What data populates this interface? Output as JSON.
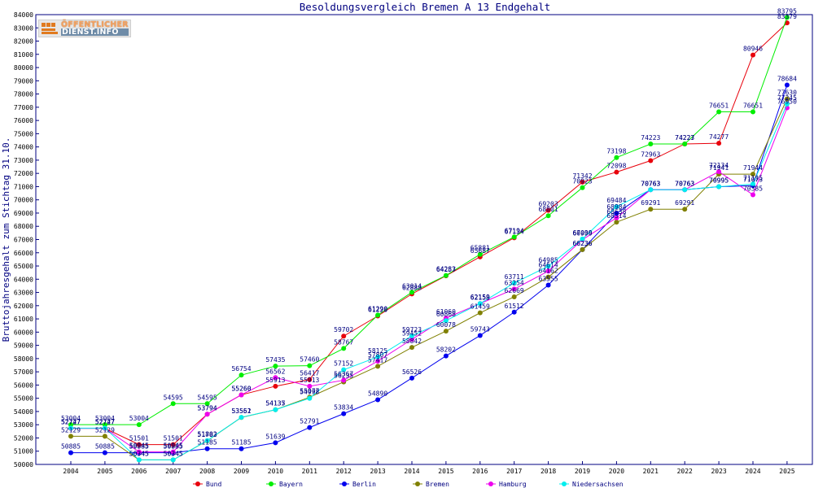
{
  "logo": {
    "line1": "ÖFFENTLICHER",
    "line2": "DIENST.INFO"
  },
  "chart_data": {
    "type": "line",
    "title": "Besoldungsvergleich Bremen A 13 Endgehalt",
    "xlabel": "",
    "ylabel": "Bruttojahresgehalt zum Stichtag 31.10.",
    "ylim": [
      50000,
      84000
    ],
    "ytick_step": 1000,
    "grid": false,
    "legend_position": "bottom",
    "categories": [
      "2004",
      "2005",
      "2006",
      "2007",
      "2008",
      "2009",
      "2010",
      "2011",
      "2012",
      "2013",
      "2014",
      "2015",
      "2016",
      "2017",
      "2018",
      "2019",
      "2020",
      "2021",
      "2022",
      "2023",
      "2024",
      "2025"
    ],
    "series": [
      {
        "name": "Bund",
        "color": "#e8000b",
        "values": [
          52727,
          52727,
          51501,
          51501,
          53794,
          55260,
          55913,
          56417,
          59702,
          61220,
          62888,
          64257,
          65687,
          67134,
          69203,
          71342,
          72098,
          72963,
          74227,
          74277,
          80946,
          83379
        ]
      },
      {
        "name": "Bayern",
        "color": "#00ee00",
        "values": [
          53004,
          53004,
          53004,
          54595,
          54595,
          56754,
          57435,
          57460,
          58767,
          61290,
          63014,
          64283,
          65881,
          67194,
          68801,
          70923,
          73198,
          74223,
          74223,
          76651,
          76651,
          83795
        ]
      },
      {
        "name": "Berlin",
        "color": "#0000ee",
        "values": [
          50885,
          50885,
          50885,
          50885,
          51185,
          51185,
          51639,
          52791,
          53834,
          54890,
          56526,
          58202,
          59743,
          61512,
          63555,
          66236,
          68984,
          70763,
          70763,
          70995,
          71073,
          78684
        ]
      },
      {
        "name": "Bremen",
        "color": "#808000",
        "values": [
          52129,
          52129,
          50345,
          50345,
          51783,
          53551,
          54135,
          55077,
          56235,
          57417,
          58842,
          60078,
          61459,
          62669,
          64162,
          66236,
          68314,
          69291,
          69291,
          71941,
          71944,
          77630
        ]
      },
      {
        "name": "Hamburg",
        "color": "#ee00ee",
        "values": [
          52727,
          52727,
          50945,
          50945,
          53794,
          55260,
          56562,
          55913,
          56367,
          57807,
          59452,
          61060,
          62158,
          63254,
          64614,
          66990,
          68638,
          70763,
          70763,
          72134,
          70385,
          76950
        ]
      },
      {
        "name": "Niedersachsen",
        "color": "#00eeee",
        "values": [
          52747,
          52747,
          50345,
          50345,
          51802,
          53562,
          54137,
          54998,
          57152,
          58125,
          59723,
          60868,
          62159,
          63711,
          64985,
          67039,
          69484,
          70763,
          70763,
          70995,
          71195,
          77245
        ]
      }
    ]
  }
}
